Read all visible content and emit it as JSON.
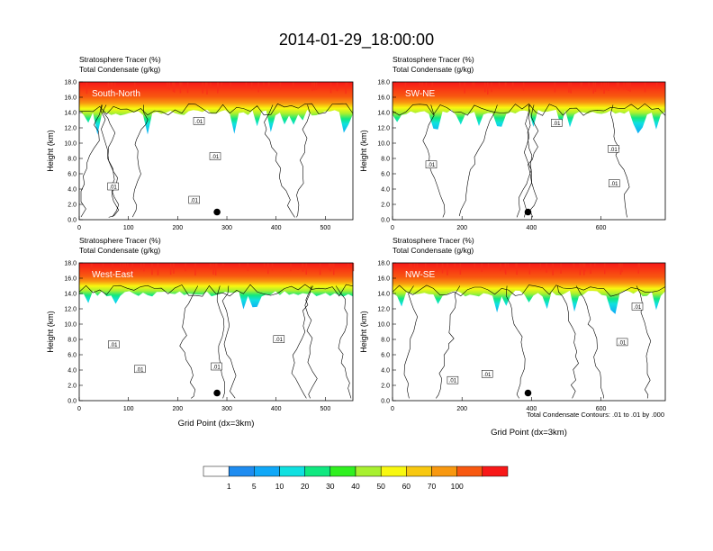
{
  "chart_data": {
    "type": "heatmap",
    "title": "2014-01-29_18:00:00",
    "panel_title_line1": "Stratosphere Tracer   (%)",
    "panel_title_line2": "Total Condensate   (g/kg)",
    "ylabel": "Height (km)",
    "xlabel": "Grid Point (dx=3km)",
    "ylim": [
      0,
      18
    ],
    "yticks": [
      "0.0",
      "2.0",
      "4.0",
      "6.0",
      "8.0",
      "10.0",
      "12.0",
      "14.0",
      "16.0",
      "18.0"
    ],
    "contour_note": "Total Condensate Contours: .01 to .01 by .000",
    "contour_label": ".01",
    "colorbar": {
      "levels": [
        "1",
        "5",
        "10",
        "20",
        "30",
        "40",
        "50",
        "60",
        "70",
        "100"
      ],
      "colors": [
        "#ffffff",
        "#1e8cf0",
        "#10a8f8",
        "#10e0e0",
        "#10e880",
        "#30f020",
        "#a8f030",
        "#f8f810",
        "#f8c810",
        "#f89810",
        "#f85810",
        "#f81818"
      ]
    },
    "panels": [
      {
        "id": "south-north",
        "label": "South-North",
        "xlim": [
          0,
          556
        ],
        "xticks": [
          0,
          100,
          200,
          300,
          400,
          500
        ],
        "dot_x": 280,
        "dot_y": 1.0
      },
      {
        "id": "sw-ne",
        "label": "SW-NE",
        "xlim": [
          0,
          785
        ],
        "xticks": [
          0,
          200,
          400,
          600
        ],
        "dot_x": 390,
        "dot_y": 1.0
      },
      {
        "id": "west-east",
        "label": "West-East",
        "xlim": [
          0,
          556
        ],
        "xticks": [
          0,
          100,
          200,
          300,
          400,
          500
        ],
        "dot_x": 280,
        "dot_y": 1.0
      },
      {
        "id": "nw-se",
        "label": "NW-SE",
        "xlim": [
          0,
          785
        ],
        "xticks": [
          0,
          200,
          400,
          600
        ],
        "dot_x": 390,
        "dot_y": 1.0
      }
    ]
  }
}
